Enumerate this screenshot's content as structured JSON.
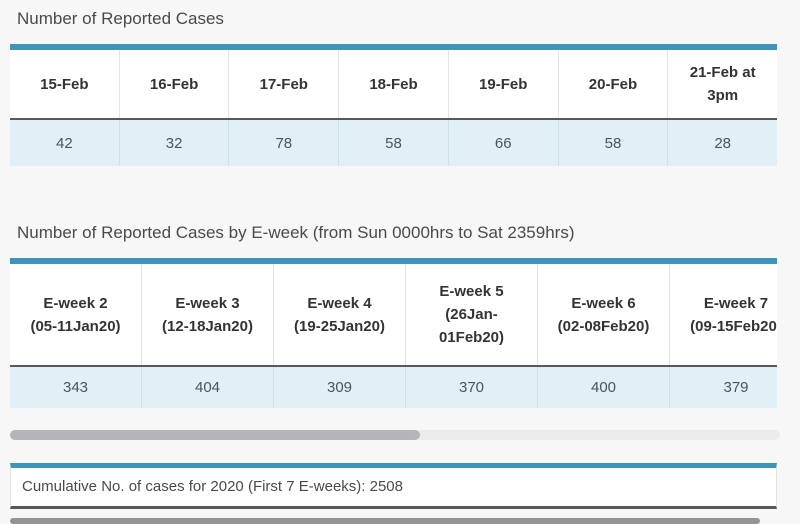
{
  "theme": {
    "accent_blue": "#4093b9",
    "row_highlight": "#e1f0f7",
    "dark_border": "#58585b",
    "scroll_thumb": "#b4b4ba"
  },
  "section_daily": {
    "title": "Number of Reported Cases",
    "columns": [
      "15-Feb",
      "16-Feb",
      "17-Feb",
      "18-Feb",
      "19-Feb",
      "20-Feb",
      "21-Feb at 3pm"
    ],
    "values": [
      "42",
      "32",
      "78",
      "58",
      "66",
      "58",
      "28"
    ]
  },
  "section_eweek": {
    "title": "Number of Reported Cases by E-week (from Sun 0000hrs to Sat 2359hrs)",
    "columns": [
      {
        "week": "E-week 2",
        "range": "(05-11Jan20)"
      },
      {
        "week": "E-week 3",
        "range": "(12-18Jan20)"
      },
      {
        "week": "E-week 4",
        "range": "(19-25Jan20)"
      },
      {
        "week": "E-week 5",
        "range": "(26Jan-01Feb20)"
      },
      {
        "week": "E-week 6",
        "range": "(02-08Feb20)"
      },
      {
        "week": "E-week 7",
        "range": "(09-15Feb20)"
      }
    ],
    "values": [
      "343",
      "404",
      "309",
      "370",
      "400",
      "379"
    ]
  },
  "cumulative": {
    "text": "Cumulative No. of cases for 2020 (First 7 E-weeks): 2508"
  }
}
